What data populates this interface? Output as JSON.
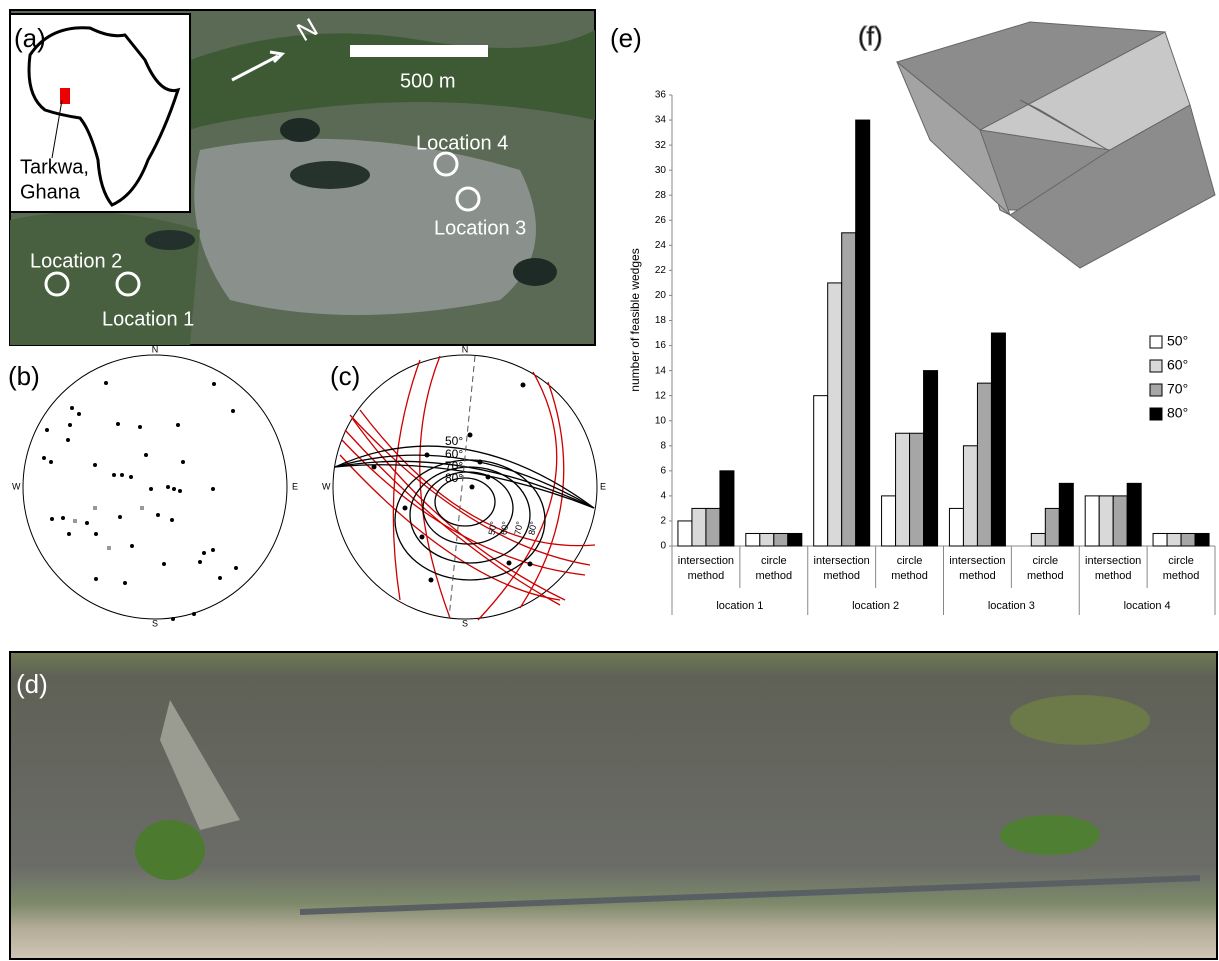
{
  "panels": {
    "a": "(a)",
    "b": "(b)",
    "c": "(c)",
    "d": "(d)",
    "e": "(e)",
    "f": "(f)"
  },
  "map": {
    "place": [
      "Tarkwa,",
      "Ghana"
    ],
    "north": "N",
    "scale": "500 m",
    "locations": [
      "Location 1",
      "Location 2",
      "Location 3",
      "Location 4"
    ]
  },
  "stereonet_b": {
    "directions": [
      "N",
      "E",
      "S",
      "W"
    ]
  },
  "stereonet_c": {
    "directions": [
      "N",
      "E",
      "S",
      "W"
    ],
    "angles": [
      "50°",
      "60°",
      "70°",
      "80°"
    ],
    "rotated_angles": [
      "50°",
      "60°",
      "70°",
      "80°"
    ]
  },
  "chart_data": {
    "type": "bar",
    "y_label": "number of feasible wedges",
    "categories": [
      [
        "intersection",
        "method"
      ],
      [
        "circle",
        "method"
      ],
      [
        "intersection",
        "method"
      ],
      [
        "circle",
        "method"
      ],
      [
        "intersection",
        "method"
      ],
      [
        "circle",
        "method"
      ],
      [
        "intersection",
        "method"
      ],
      [
        "circle",
        "method"
      ]
    ],
    "groups": [
      "location 1",
      "location 2",
      "location 3",
      "location 4"
    ],
    "series": [
      {
        "name": "50°",
        "color": "#ffffff",
        "values": [
          2,
          1,
          12,
          4,
          3,
          0,
          4,
          1
        ]
      },
      {
        "name": "60°",
        "color": "#d9d9d9",
        "values": [
          3,
          1,
          21,
          9,
          8,
          1,
          4,
          1
        ]
      },
      {
        "name": "70°",
        "color": "#a6a6a6",
        "values": [
          3,
          1,
          25,
          9,
          13,
          3,
          4,
          1
        ]
      },
      {
        "name": "80°",
        "color": "#000000",
        "values": [
          6,
          1,
          34,
          14,
          17,
          5,
          5,
          1
        ]
      }
    ],
    "ylim": [
      0,
      36
    ],
    "yticks": [
      0,
      2,
      4,
      6,
      8,
      10,
      12,
      14,
      16,
      18,
      20,
      22,
      24,
      26,
      28,
      30,
      32,
      34,
      36
    ],
    "legend": "right"
  }
}
